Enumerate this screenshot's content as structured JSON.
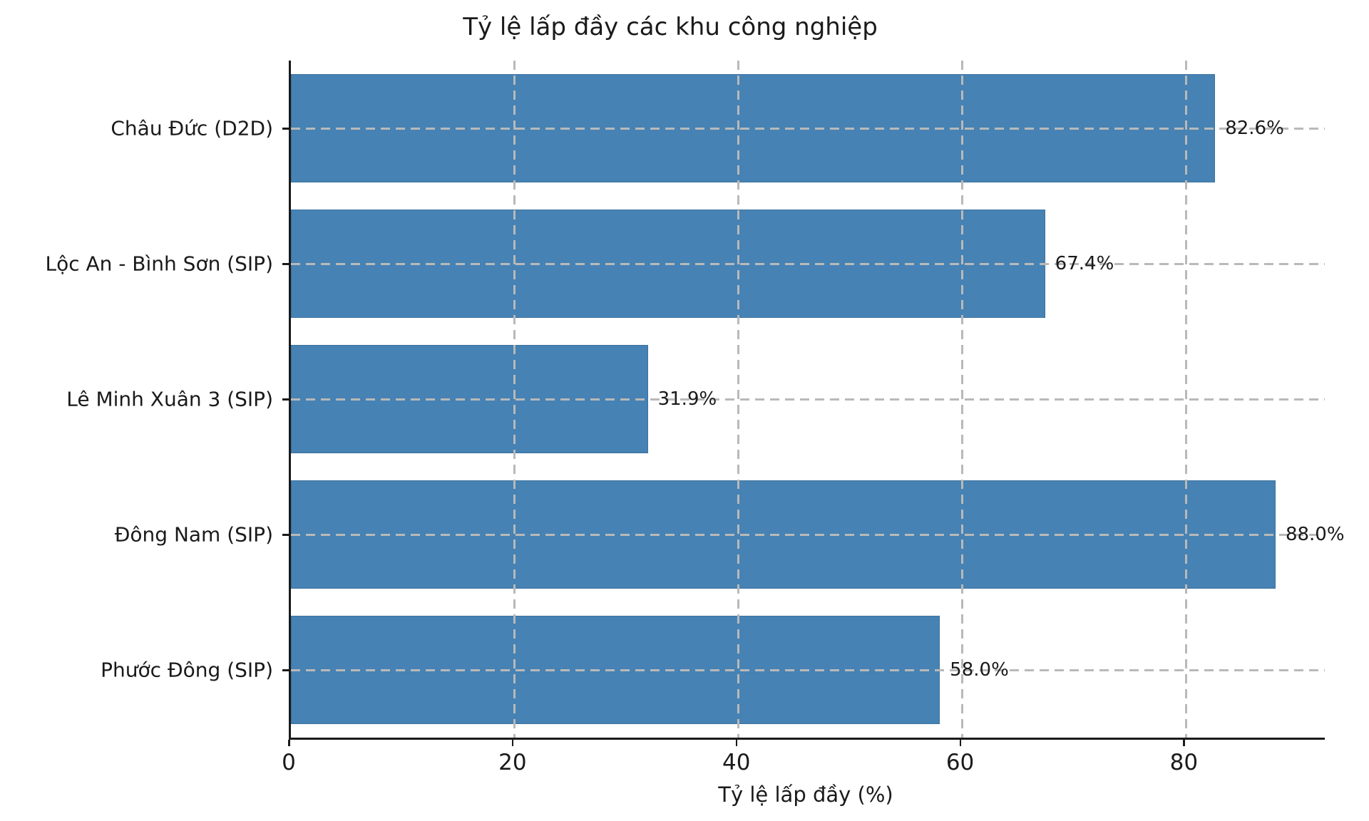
{
  "chart_data": {
    "type": "bar",
    "orientation": "horizontal",
    "title": "Tỷ lệ lấp đầy các khu công nghiệp",
    "xlabel": "Tỷ lệ lấp đầy (%)",
    "ylabel": "",
    "categories": [
      "Châu Đức (D2D)",
      "Lộc An - Bình Sơn (SIP)",
      "Lê Minh Xuân 3 (SIP)",
      "Đông Nam (SIP)",
      "Phước Đông (SIP)"
    ],
    "values": [
      82.6,
      67.4,
      31.9,
      88.0,
      58.0
    ],
    "value_labels": [
      "82.6%",
      "67.4%",
      "31.9%",
      "88.0%",
      "58.0%"
    ],
    "x_ticks": [
      0,
      20,
      40,
      60,
      80
    ],
    "x_tick_labels": [
      "0",
      "20",
      "40",
      "60",
      "80"
    ],
    "xlim": [
      0,
      92.4
    ],
    "grid": "dashed both axes, drawn over bars",
    "legend": "none",
    "bar_color": "#4682b4",
    "grid_color": "#b9b9b9",
    "axis_color": "#1a1a1a",
    "text_color": "#1a1a1a",
    "background_color": "#ffffff"
  }
}
